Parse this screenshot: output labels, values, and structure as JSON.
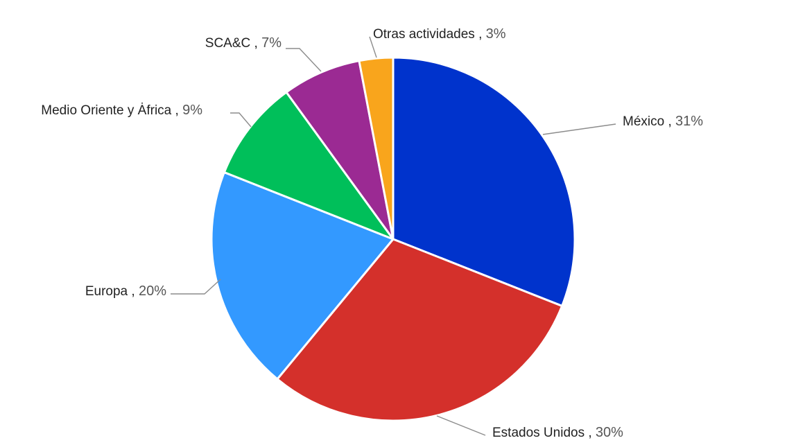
{
  "chart_data": {
    "type": "pie",
    "title": "",
    "slices": [
      {
        "label": "México",
        "value": 31,
        "pct_text": "31%",
        "color": "#0033cc"
      },
      {
        "label": "Estados Unidos",
        "value": 30,
        "pct_text": "30%",
        "color": "#d4302b"
      },
      {
        "label": "Europa",
        "value": 20,
        "pct_text": "20%",
        "color": "#3399ff"
      },
      {
        "label": "Medio Oriente y Ȧfrica",
        "value": 9,
        "pct_text": "9%",
        "color": "#00bf5a"
      },
      {
        "label": "SCA&C",
        "value": 7,
        "pct_text": "7%",
        "color": "#9b2a93"
      },
      {
        "label": "Otras actividades",
        "value": 3,
        "pct_text": "3%",
        "color": "#f9a51c"
      }
    ],
    "start_angle": "12 o'clock",
    "direction": "clockwise",
    "legend": "none",
    "label_style": "outside labels with leader lines"
  }
}
